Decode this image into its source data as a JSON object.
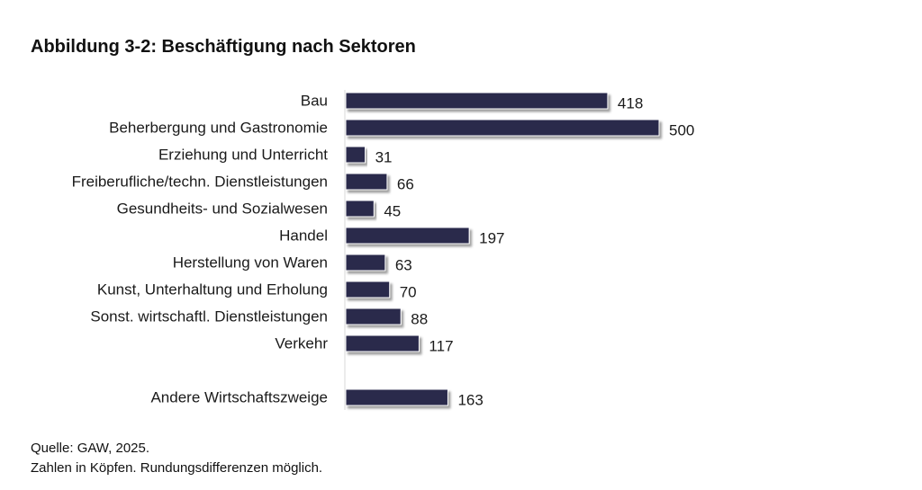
{
  "figure": {
    "title": "Abbildung 3-2: Beschäftigung nach Sektoren"
  },
  "chart_data": {
    "type": "bar",
    "orientation": "horizontal",
    "title": "Abbildung 3-2: Beschäftigung nach Sektoren",
    "xlabel": "",
    "ylabel": "",
    "xlim": [
      0,
      500
    ],
    "grid": false,
    "legend": "none",
    "categories": [
      "Bau",
      "Beherbergung und Gastronomie",
      "Erziehung und Unterricht",
      "Freiberufliche/techn. Dienstleistungen",
      "Gesundheits- und Sozialwesen",
      "Handel",
      "Herstellung von Waren",
      "Kunst, Unterhaltung und Erholung",
      "Sonst. wirtschaftl. Dienstleistungen",
      "Verkehr",
      "Andere Wirtschaftszweige"
    ],
    "values": [
      418,
      500,
      31,
      66,
      45,
      197,
      63,
      70,
      88,
      117,
      163
    ],
    "data_labels": [
      "418",
      "500",
      "31",
      "66",
      "45",
      "197",
      "63",
      "70",
      "88",
      "117",
      "163"
    ],
    "bar_color": "#2b2a4c"
  },
  "footer": {
    "source": "Quelle: GAW, 2025.",
    "note": "Zahlen in Köpfen. Rundungsdifferenzen möglich."
  }
}
